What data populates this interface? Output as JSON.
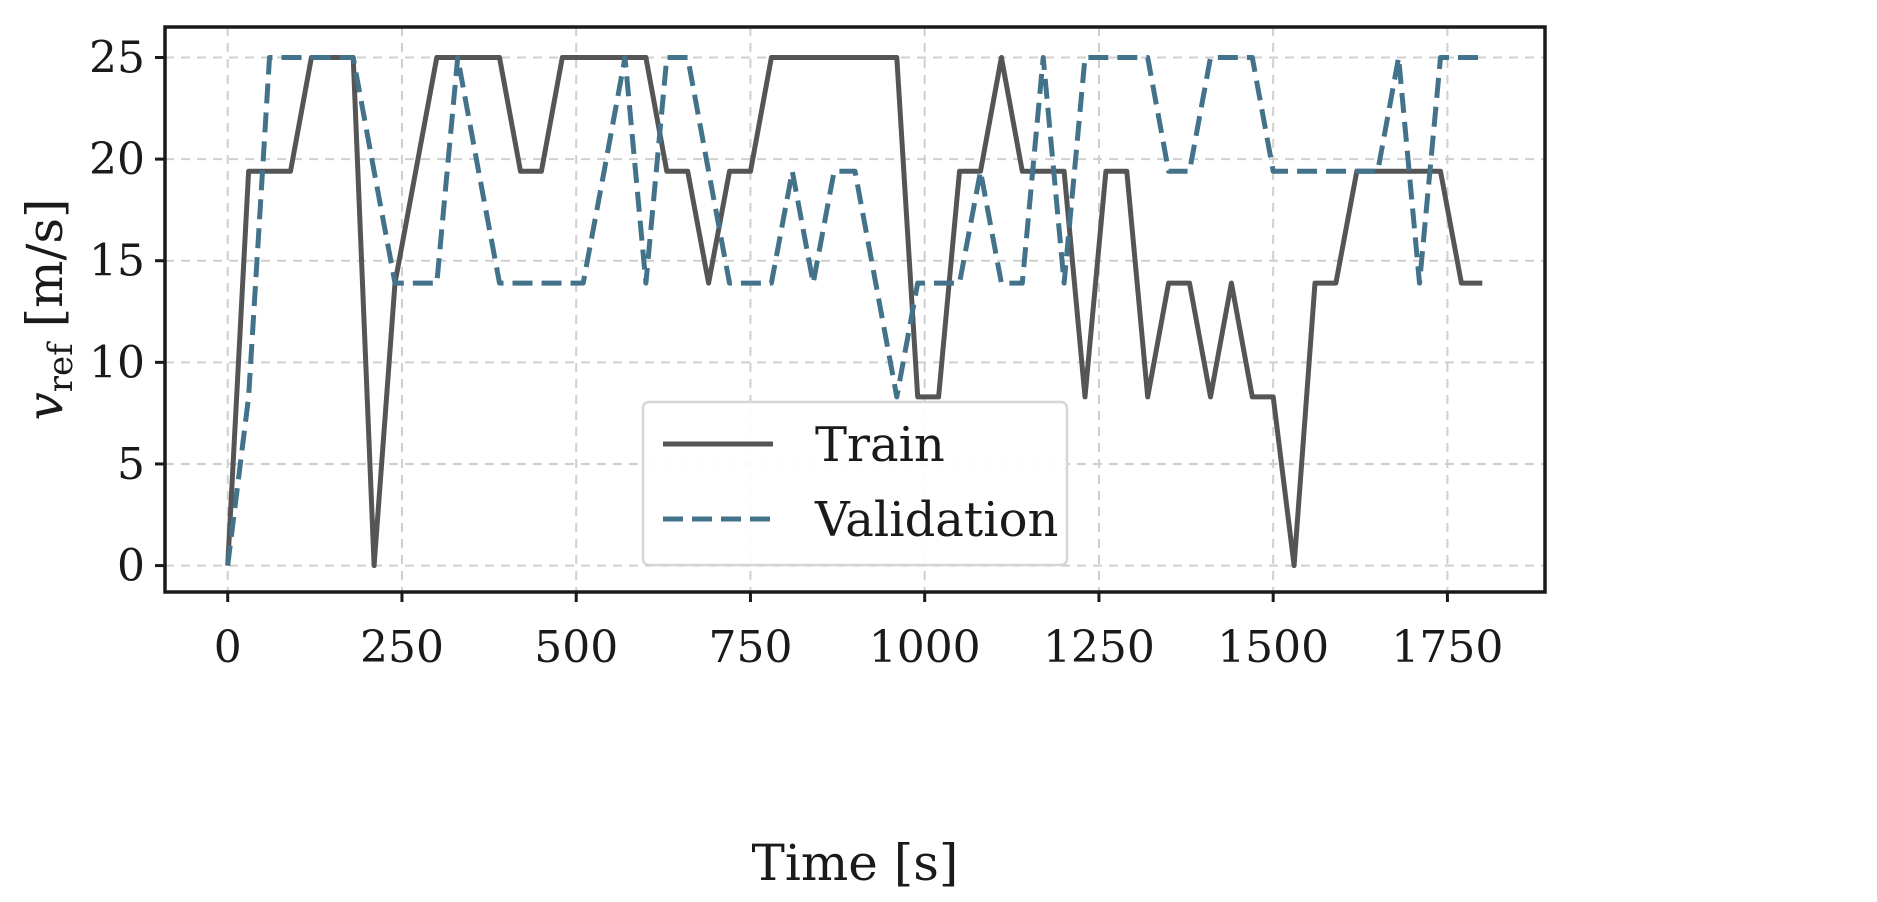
{
  "chart_data": {
    "type": "line",
    "title": "",
    "xlabel": "Time [s]",
    "ylabel_main": "v",
    "ylabel_sub": "ref",
    "ylabel_units": " [m/s]",
    "xlim": [
      -90,
      1890
    ],
    "ylim": [
      -1.3,
      26.5
    ],
    "xticks": [
      0,
      250,
      500,
      750,
      1000,
      1250,
      1500,
      1750
    ],
    "yticks": [
      0,
      5,
      10,
      15,
      20,
      25
    ],
    "grid": true,
    "legend_position": "lower-center",
    "series": [
      {
        "name": "Train",
        "color": "#555555",
        "style": "solid",
        "points": [
          [
            0,
            0
          ],
          [
            30,
            19.4
          ],
          [
            90,
            19.4
          ],
          [
            120,
            25
          ],
          [
            180,
            25
          ],
          [
            210,
            0
          ],
          [
            240,
            13.9
          ],
          [
            300,
            25
          ],
          [
            390,
            25
          ],
          [
            420,
            19.4
          ],
          [
            450,
            19.4
          ],
          [
            480,
            25
          ],
          [
            600,
            25
          ],
          [
            630,
            19.4
          ],
          [
            660,
            19.4
          ],
          [
            690,
            13.9
          ],
          [
            720,
            19.4
          ],
          [
            750,
            19.4
          ],
          [
            780,
            25
          ],
          [
            960,
            25
          ],
          [
            990,
            8.3
          ],
          [
            1020,
            8.3
          ],
          [
            1050,
            19.4
          ],
          [
            1080,
            19.4
          ],
          [
            1110,
            25
          ],
          [
            1140,
            19.4
          ],
          [
            1200,
            19.4
          ],
          [
            1230,
            8.3
          ],
          [
            1260,
            19.4
          ],
          [
            1290,
            19.4
          ],
          [
            1320,
            8.3
          ],
          [
            1350,
            13.9
          ],
          [
            1380,
            13.9
          ],
          [
            1410,
            8.3
          ],
          [
            1440,
            13.9
          ],
          [
            1470,
            8.3
          ],
          [
            1500,
            8.3
          ],
          [
            1530,
            0
          ],
          [
            1560,
            13.9
          ],
          [
            1590,
            13.9
          ],
          [
            1620,
            19.4
          ],
          [
            1740,
            19.4
          ],
          [
            1770,
            13.9
          ],
          [
            1800,
            13.9
          ]
        ]
      },
      {
        "name": "Validation",
        "color": "#43738a",
        "style": "dashed",
        "points": [
          [
            0,
            0
          ],
          [
            30,
            8.3
          ],
          [
            60,
            25
          ],
          [
            180,
            25
          ],
          [
            210,
            19.4
          ],
          [
            240,
            13.9
          ],
          [
            300,
            13.9
          ],
          [
            330,
            25
          ],
          [
            360,
            19.4
          ],
          [
            390,
            13.9
          ],
          [
            510,
            13.9
          ],
          [
            540,
            19.4
          ],
          [
            570,
            25
          ],
          [
            600,
            13.9
          ],
          [
            630,
            25
          ],
          [
            660,
            25
          ],
          [
            690,
            19.4
          ],
          [
            720,
            13.9
          ],
          [
            780,
            13.9
          ],
          [
            810,
            19.4
          ],
          [
            840,
            13.9
          ],
          [
            870,
            19.4
          ],
          [
            900,
            19.4
          ],
          [
            960,
            8.3
          ],
          [
            990,
            13.9
          ],
          [
            1050,
            13.9
          ],
          [
            1080,
            19.4
          ],
          [
            1110,
            13.9
          ],
          [
            1140,
            13.9
          ],
          [
            1170,
            25
          ],
          [
            1200,
            13.9
          ],
          [
            1230,
            25
          ],
          [
            1320,
            25
          ],
          [
            1350,
            19.4
          ],
          [
            1380,
            19.4
          ],
          [
            1410,
            25
          ],
          [
            1470,
            25
          ],
          [
            1500,
            19.4
          ],
          [
            1650,
            19.4
          ],
          [
            1680,
            25
          ],
          [
            1710,
            13.9
          ],
          [
            1740,
            25
          ],
          [
            1800,
            25
          ]
        ]
      }
    ]
  }
}
